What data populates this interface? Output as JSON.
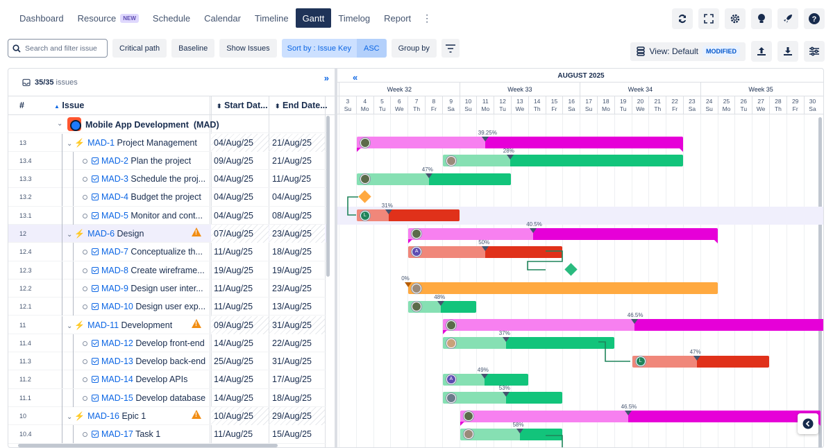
{
  "nav": {
    "tabs": [
      {
        "label": "Dashboard"
      },
      {
        "label": "Resource",
        "badge": "NEW"
      },
      {
        "label": "Schedule"
      },
      {
        "label": "Calendar"
      },
      {
        "label": "Timeline"
      },
      {
        "label": "Gantt",
        "active": true
      },
      {
        "label": "Timelog"
      },
      {
        "label": "Report"
      }
    ],
    "more_label": "⋮"
  },
  "toolbar": {
    "search_placeholder": "Search and filter issue",
    "critical_path": "Critical path",
    "baseline": "Baseline",
    "show_issues": "Show Issues",
    "sort_by": "Sort by : Issue Key",
    "sort_dir": "ASC",
    "group_by": "Group by",
    "view_label": "View: Default",
    "view_badge": "MODIFIED"
  },
  "issues_count": {
    "shown": "35/35",
    "label": "issues"
  },
  "columns": {
    "num": "#",
    "issue": "Issue",
    "start": "Start Dat...",
    "end": "End Date..."
  },
  "project": {
    "name": "Mobile App Development",
    "key": "(MAD)"
  },
  "rows": [
    {
      "num": "13",
      "key": "MAD-1",
      "title": "Project Management",
      "start": "04/Aug/25",
      "end": "21/Aug/25",
      "type": "epic",
      "warn": false
    },
    {
      "num": "13.4",
      "key": "MAD-2",
      "title": "Plan the project",
      "start": "09/Aug/25",
      "end": "21/Aug/25",
      "type": "task"
    },
    {
      "num": "13.3",
      "key": "MAD-3",
      "title": "Schedule the proj...",
      "start": "04/Aug/25",
      "end": "11/Aug/25",
      "type": "task"
    },
    {
      "num": "13.2",
      "key": "MAD-4",
      "title": "Budget the project",
      "start": "04/Aug/25",
      "end": "04/Aug/25",
      "type": "task"
    },
    {
      "num": "13.1",
      "key": "MAD-5",
      "title": "Monitor and cont...",
      "start": "04/Aug/25",
      "end": "08/Aug/25",
      "type": "task"
    },
    {
      "num": "12",
      "key": "MAD-6",
      "title": "Design",
      "start": "07/Aug/25",
      "end": "23/Aug/25",
      "type": "epic",
      "warn": true
    },
    {
      "num": "12.4",
      "key": "MAD-7",
      "title": "Conceptualize th...",
      "start": "11/Aug/25",
      "end": "18/Aug/25",
      "type": "task"
    },
    {
      "num": "12.3",
      "key": "MAD-8",
      "title": "Create wireframe...",
      "start": "19/Aug/25",
      "end": "19/Aug/25",
      "type": "task"
    },
    {
      "num": "12.2",
      "key": "MAD-9",
      "title": "Design user inter...",
      "start": "11/Aug/25",
      "end": "23/Aug/25",
      "type": "task"
    },
    {
      "num": "12.1",
      "key": "MAD-10",
      "title": "Design user exp...",
      "start": "11/Aug/25",
      "end": "13/Aug/25",
      "type": "task"
    },
    {
      "num": "11",
      "key": "MAD-11",
      "title": "Development",
      "start": "09/Aug/25",
      "end": "31/Aug/25",
      "type": "epic",
      "warn": true
    },
    {
      "num": "11.4",
      "key": "MAD-12",
      "title": "Develop front-end",
      "start": "14/Aug/25",
      "end": "22/Aug/25",
      "type": "task"
    },
    {
      "num": "11.3",
      "key": "MAD-13",
      "title": "Develop back-end",
      "start": "25/Aug/25",
      "end": "31/Aug/25",
      "type": "task"
    },
    {
      "num": "11.2",
      "key": "MAD-14",
      "title": "Develop APIs",
      "start": "14/Aug/25",
      "end": "17/Aug/25",
      "type": "task"
    },
    {
      "num": "11.1",
      "key": "MAD-15",
      "title": "Develop database",
      "start": "14/Aug/25",
      "end": "18/Aug/25",
      "type": "task"
    },
    {
      "num": "10",
      "key": "MAD-16",
      "title": "Epic 1",
      "start": "10/Aug/25",
      "end": "29/Aug/25",
      "type": "epic",
      "warn": true
    },
    {
      "num": "10.4",
      "key": "MAD-17",
      "title": "Task 1",
      "start": "11/Aug/25",
      "end": "15/Aug/25",
      "type": "task"
    }
  ],
  "timeline": {
    "month": "AUGUST 2025",
    "weeks": [
      "Week 32",
      "Week 33",
      "Week 34",
      "Week 35"
    ],
    "days": [
      [
        "3",
        "Su"
      ],
      [
        "4",
        "Mo"
      ],
      [
        "5",
        "Tu"
      ],
      [
        "6",
        "We"
      ],
      [
        "7",
        "Th"
      ],
      [
        "8",
        "Fr"
      ],
      [
        "9",
        "Sa"
      ],
      [
        "10",
        "Su"
      ],
      [
        "11",
        "Mo"
      ],
      [
        "12",
        "Tu"
      ],
      [
        "13",
        "We"
      ],
      [
        "14",
        "Th"
      ],
      [
        "15",
        "Fr"
      ],
      [
        "16",
        "Sa"
      ],
      [
        "17",
        "Su"
      ],
      [
        "18",
        "Mo"
      ],
      [
        "19",
        "Tu"
      ],
      [
        "20",
        "We"
      ],
      [
        "21",
        "Th"
      ],
      [
        "22",
        "Fr"
      ],
      [
        "23",
        "Sa"
      ],
      [
        "24",
        "Su"
      ],
      [
        "25",
        "Mo"
      ],
      [
        "26",
        "Tu"
      ],
      [
        "27",
        "We"
      ],
      [
        "28",
        "Th"
      ],
      [
        "29",
        "Fr"
      ],
      [
        "30",
        "Sa"
      ]
    ]
  },
  "bars": [
    {
      "row": 0,
      "start": 4,
      "end": 22,
      "pct": "39.25%",
      "progress": 0.3925,
      "kind": "epic",
      "avatar": "photo"
    },
    {
      "row": 1,
      "start": 9,
      "end": 22,
      "pct": "28%",
      "progress": 0.28,
      "kind": "green",
      "avatar": "photo2"
    },
    {
      "row": 2,
      "start": 4,
      "end": 12,
      "pct": "47%",
      "progress": 0.47,
      "kind": "green",
      "avatar": "photo"
    },
    {
      "row": 3,
      "start": 4,
      "end": 4,
      "kind": "milestone",
      "color": "#ffa940"
    },
    {
      "row": 4,
      "start": 4,
      "end": 9,
      "pct": "31%",
      "progress": 0.31,
      "kind": "red",
      "avatar": "L"
    },
    {
      "row": 5,
      "start": 7,
      "end": 24,
      "pct": "40.5%",
      "progress": 0.405,
      "kind": "epic",
      "avatar": "photo"
    },
    {
      "row": 6,
      "start": 7,
      "end": 15,
      "pct": "50%",
      "progress": 0.5,
      "kind": "red",
      "avatar": "A"
    },
    {
      "row": 7,
      "start": 16,
      "end": 16,
      "kind": "milestone",
      "color": "#2abb7f"
    },
    {
      "row": 8,
      "start": 7,
      "end": 24,
      "pct": "0%",
      "progress": 0,
      "kind": "orange",
      "avatar": "photo2"
    },
    {
      "row": 9,
      "start": 7,
      "end": 10,
      "pct": "48%",
      "progress": 0.48,
      "kind": "green",
      "avatar": "photo"
    },
    {
      "row": 10,
      "start": 9,
      "end": 32,
      "pct": "46.5%",
      "progress": 0.465,
      "kind": "epic",
      "avatar": "photo"
    },
    {
      "row": 11,
      "start": 9,
      "end": 18,
      "pct": "37%",
      "progress": 0.37,
      "kind": "green",
      "avatar": "photo3"
    },
    {
      "row": 12,
      "start": 20,
      "end": 27,
      "pct": "47%",
      "progress": 0.47,
      "kind": "red",
      "avatar": "L"
    },
    {
      "row": 13,
      "start": 9,
      "end": 13,
      "pct": "49%",
      "progress": 0.49,
      "kind": "green",
      "avatar": "A"
    },
    {
      "row": 14,
      "start": 9,
      "end": 15,
      "pct": "53%",
      "progress": 0.53,
      "kind": "green",
      "avatar": "photo4"
    },
    {
      "row": 15,
      "start": 10,
      "end": 30,
      "pct": "46.5%",
      "progress": 0.465,
      "kind": "epic",
      "avatar": "photo"
    },
    {
      "row": 16,
      "start": 10,
      "end": 15,
      "pct": "58%",
      "progress": 0.58,
      "kind": "green",
      "avatar": "photo2"
    }
  ],
  "colors": {
    "epic_light": "#f780f0",
    "epic_dark": "#e600d8",
    "green_light": "#86e0b3",
    "green_dark": "#12c47b",
    "red_light": "#f0877a",
    "red_dark": "#e0311a",
    "orange": "#ffa940",
    "accent": "#1f3358"
  }
}
